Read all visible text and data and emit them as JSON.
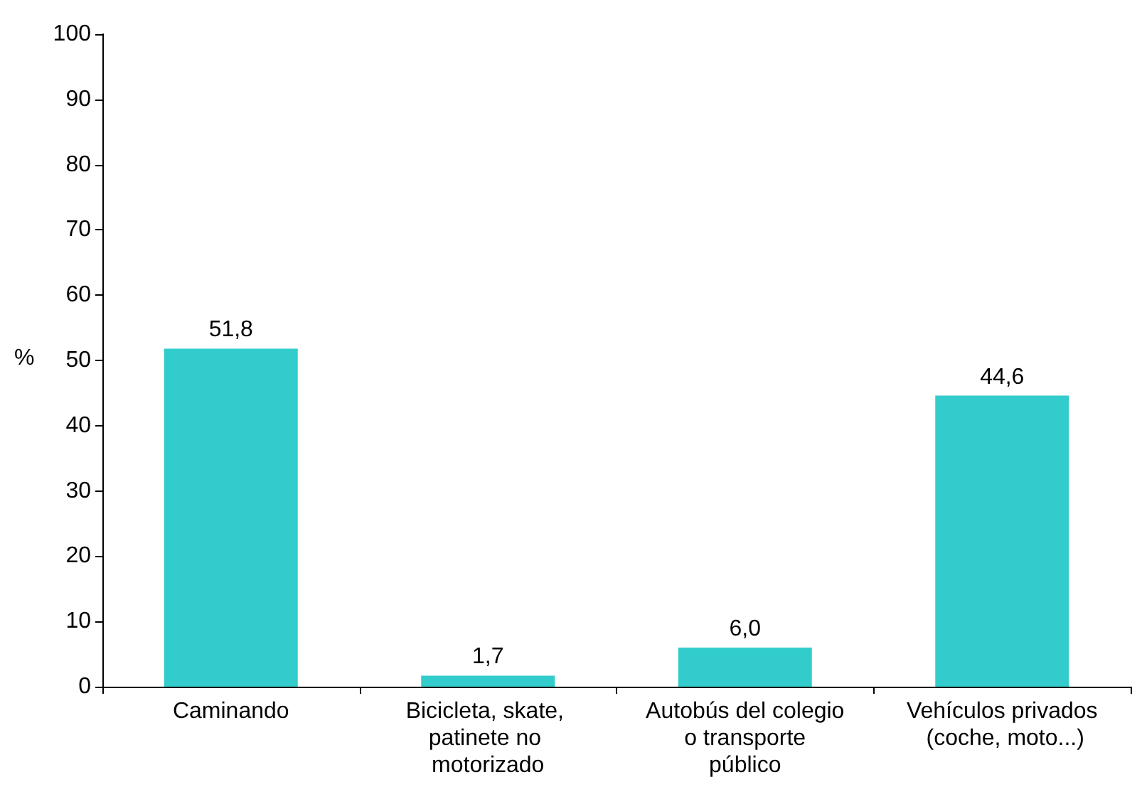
{
  "chart_data": {
    "type": "bar",
    "ylabel": "%",
    "categories": [
      "Caminando",
      "Bicicleta, skate, patinete no motorizado",
      "Autobús del colegio o transporte público",
      "Vehículos privados (coche, moto...)"
    ],
    "values": [
      51.8,
      1.7,
      6.0,
      44.6
    ],
    "color": "#33cccc",
    "value_labels": [
      "51,8",
      "1,7",
      "6,0",
      "44,6"
    ],
    "ylim": [
      0,
      100
    ],
    "yticks": [
      0,
      10,
      20,
      30,
      40,
      50,
      60,
      70,
      80,
      90,
      100
    ],
    "grid": false
  }
}
